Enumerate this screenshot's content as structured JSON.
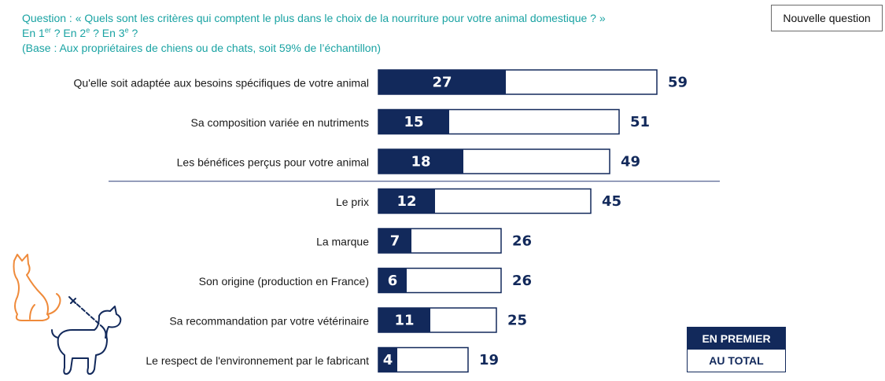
{
  "header": {
    "question_line": "Question : « Quels sont les critères qui comptent le plus dans le choix de la nourriture pour votre animal domestique ? »",
    "rank_1_prefix": "En 1",
    "rank_1_sup": "er",
    "rank_2_prefix": " ? En 2",
    "rank_2_sup": "e",
    "rank_3_prefix": " ? En 3",
    "rank_3_sup": "e",
    "rank_suffix": " ?",
    "base_line": "(Base : Aux propriétaires de chiens ou de chats, soit 59% de l’échantillon)"
  },
  "new_question_button": "Nouvelle question",
  "legend": {
    "first": "EN PREMIER",
    "total": "AU TOTAL"
  },
  "colors": {
    "question_text": "#1aa3a3",
    "navy": "#12295b",
    "separator": "#2c3e78",
    "pet_cat": "#ef8a3a",
    "pet_dog": "#12295b"
  },
  "icons": {
    "pets": "cat-and-dog-on-leash-illustration"
  },
  "chart_data": {
    "type": "bar",
    "orientation": "horizontal",
    "categories": [
      "Qu'elle soit adaptée aux besoins spécifiques de votre animal",
      "Sa composition variée en nutriments",
      "Les bénéfices perçus pour votre animal",
      "Le prix",
      "La marque",
      "Son origine (production en France)",
      "Sa recommandation par votre vétérinaire",
      "Le respect de l'environnement par le fabricant"
    ],
    "series": [
      {
        "name": "EN PREMIER",
        "values": [
          27,
          15,
          18,
          12,
          7,
          6,
          11,
          4
        ]
      },
      {
        "name": "AU TOTAL",
        "values": [
          59,
          51,
          49,
          45,
          26,
          26,
          25,
          19
        ]
      }
    ],
    "separator_after_index": 2,
    "legend_position": "bottom-right",
    "grid": false
  }
}
